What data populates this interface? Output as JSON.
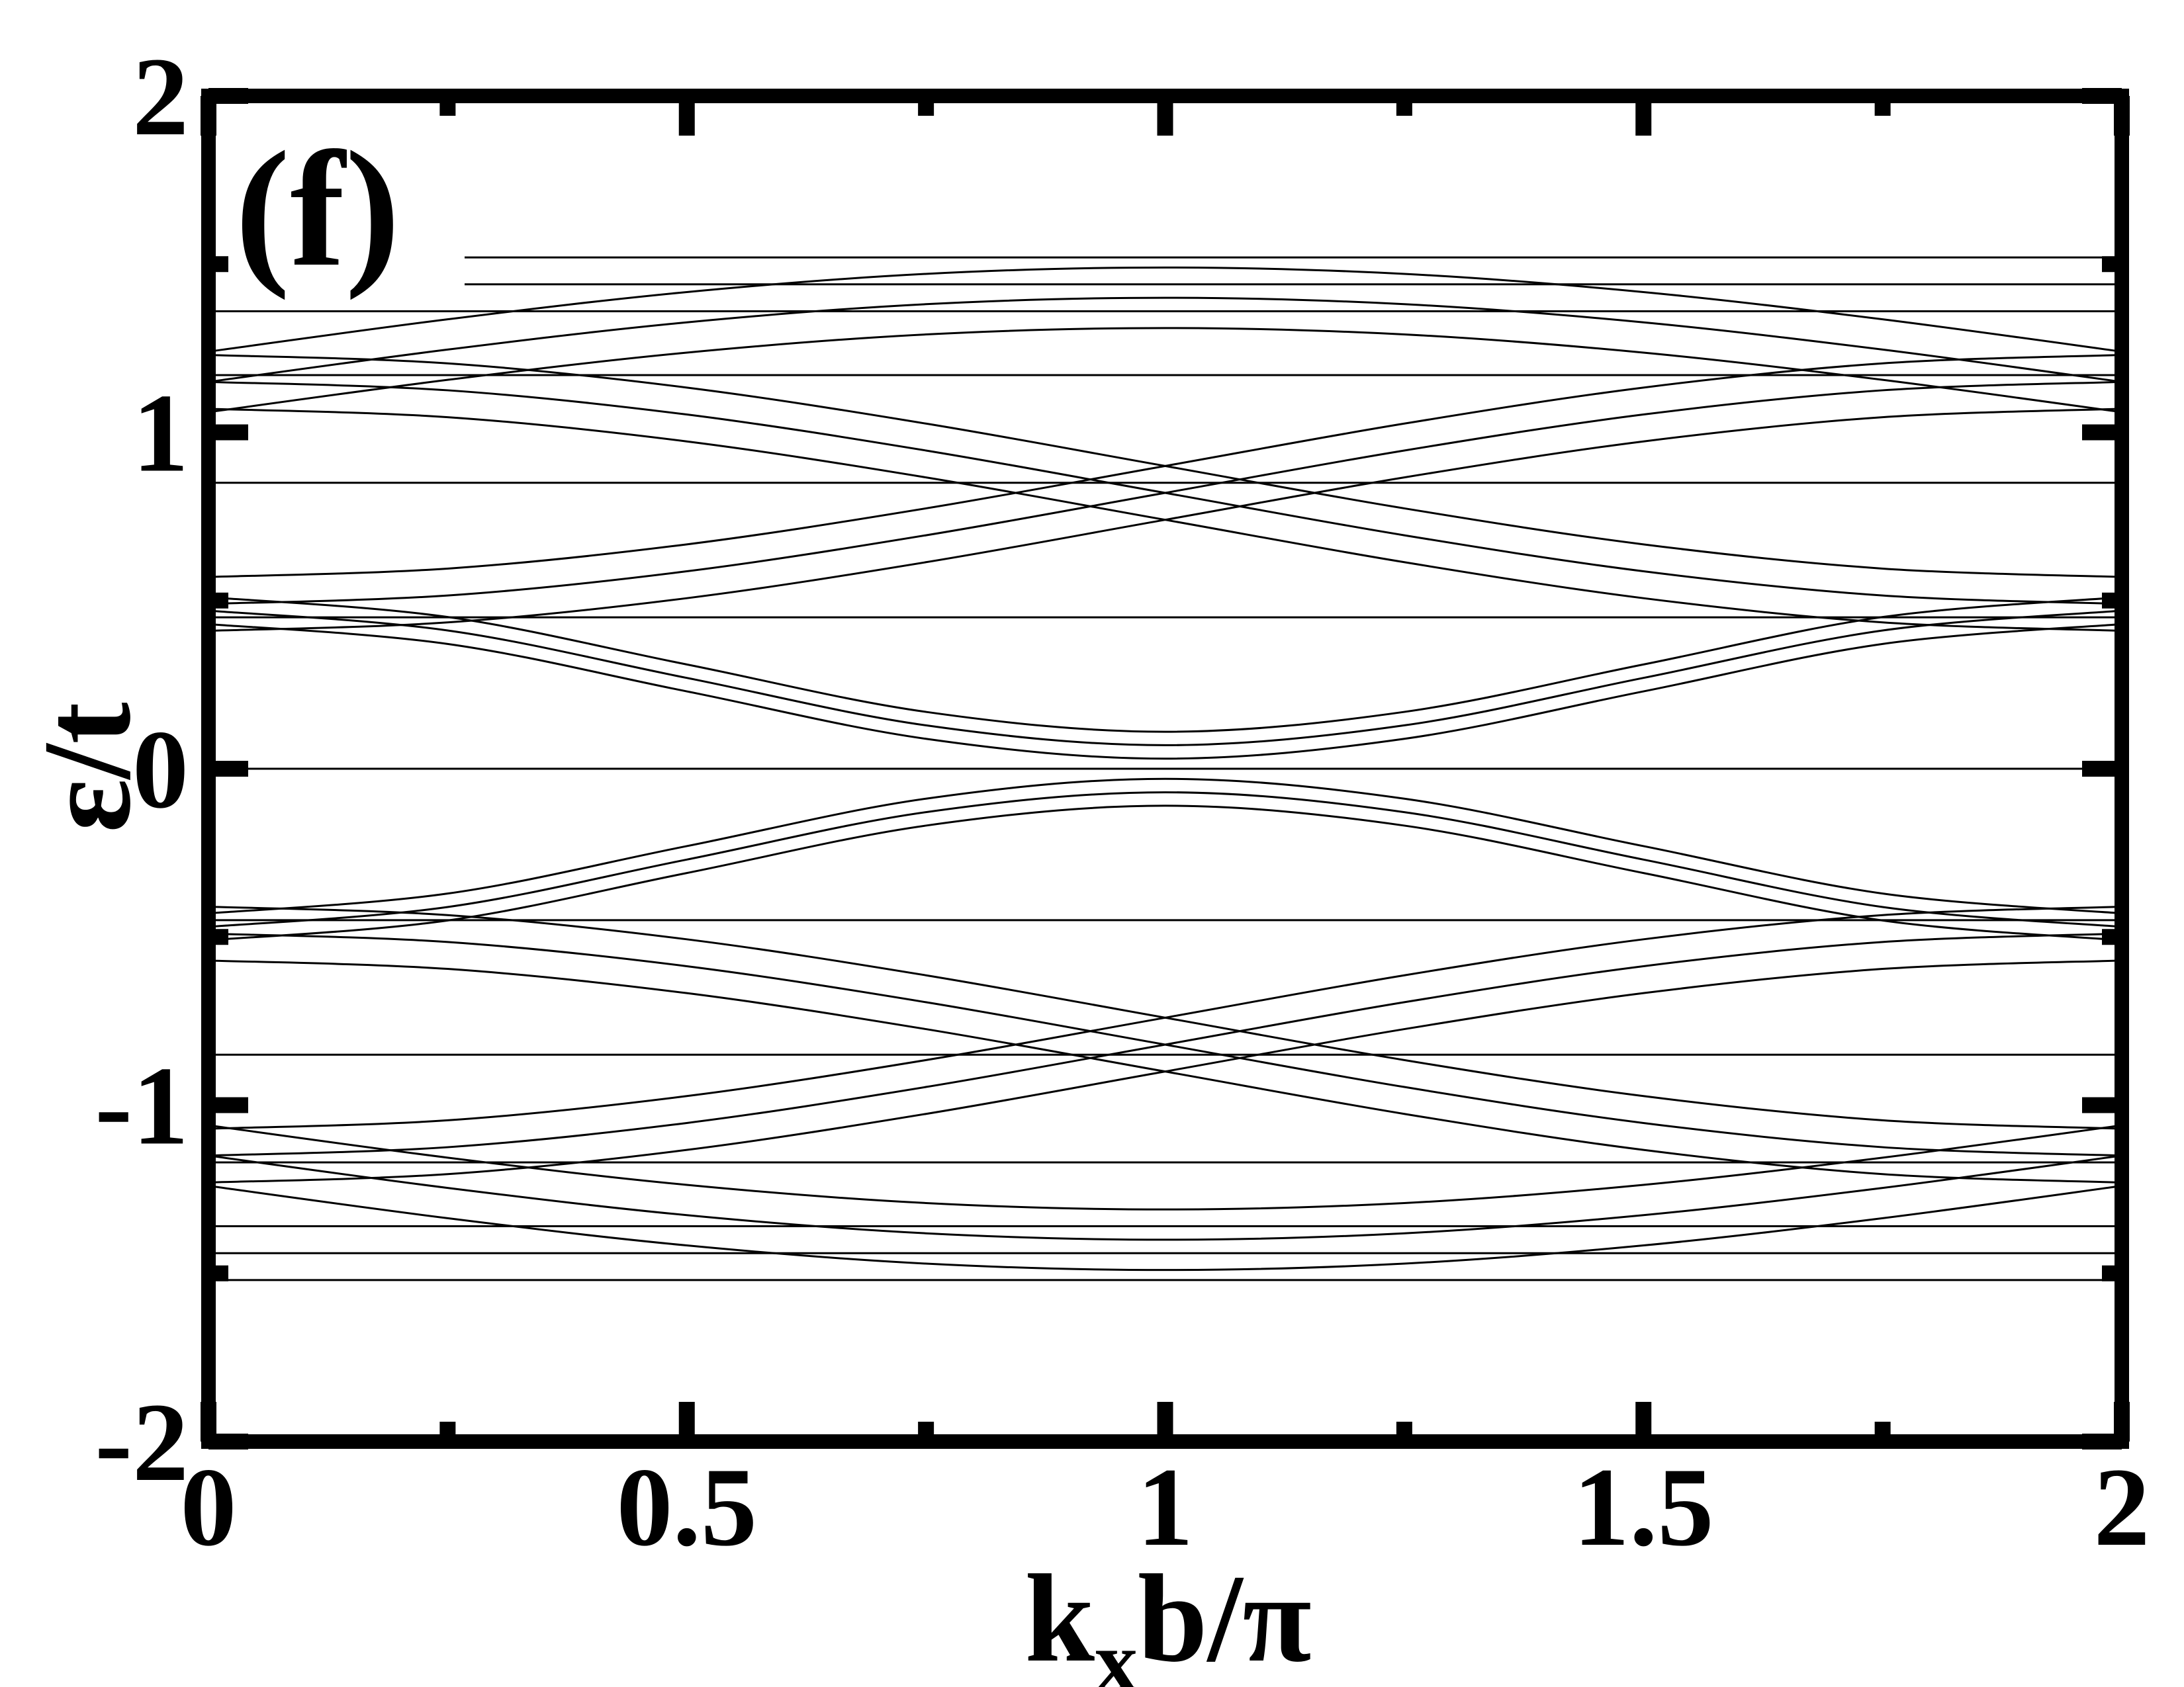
{
  "chart_data": {
    "type": "line",
    "annotation": "(f)",
    "xlabel": [
      "k",
      "x",
      "b/π"
    ],
    "ylabel": "ε/t",
    "color": "#000000",
    "xlim": [
      0,
      2
    ],
    "xticks": [
      0,
      0.5,
      1,
      1.5,
      2
    ],
    "xminorticks": [
      0.25,
      0.75,
      1.25,
      1.75
    ],
    "ylim": [
      -2,
      2
    ],
    "yticks": [
      -2,
      -1,
      0,
      1,
      2
    ],
    "yminorticks": [
      -1.5,
      -0.5,
      0.5,
      1.5
    ],
    "x": [
      0,
      0.25,
      0.5,
      0.75,
      1,
      1.25,
      1.5,
      1.75,
      2
    ],
    "series": [
      {
        "values": [
          1.07,
          1.045,
          0.973,
          0.866,
          0.74,
          0.614,
          0.507,
          0.435,
          0.41
        ]
      },
      {
        "values": [
          1.15,
          1.125,
          1.053,
          0.946,
          0.82,
          0.694,
          0.587,
          0.515,
          0.49
        ]
      },
      {
        "values": [
          1.23,
          1.205,
          1.133,
          1.026,
          0.9,
          0.774,
          0.667,
          0.595,
          0.57
        ]
      },
      {
        "values": [
          0.41,
          0.435,
          0.507,
          0.614,
          0.74,
          0.866,
          0.973,
          1.045,
          1.07
        ]
      },
      {
        "values": [
          0.49,
          0.515,
          0.587,
          0.694,
          0.82,
          0.946,
          1.053,
          1.125,
          1.15
        ]
      },
      {
        "values": [
          0.57,
          0.595,
          0.667,
          0.774,
          0.9,
          1.026,
          1.133,
          1.205,
          1.23
        ]
      },
      {
        "values": [
          1.06,
          1.156,
          1.237,
          1.291,
          1.31,
          1.291,
          1.237,
          1.156,
          1.06
        ]
      },
      {
        "values": [
          1.15,
          1.246,
          1.327,
          1.381,
          1.4,
          1.381,
          1.327,
          1.246,
          1.15
        ]
      },
      {
        "values": [
          1.24,
          1.336,
          1.417,
          1.471,
          1.49,
          1.471,
          1.417,
          1.336,
          1.24
        ]
      },
      {
        "values": [
          0.43,
          0.371,
          0.23,
          0.089,
          0.03,
          0.089,
          0.23,
          0.371,
          0.43
        ]
      },
      {
        "values": [
          0.47,
          0.411,
          0.27,
          0.129,
          0.07,
          0.129,
          0.27,
          0.411,
          0.47
        ]
      },
      {
        "values": [
          0.51,
          0.451,
          0.31,
          0.169,
          0.11,
          0.169,
          0.31,
          0.451,
          0.51
        ]
      },
      {
        "values": [
          1.52,
          1.52,
          1.52,
          1.52,
          1.52,
          1.52,
          1.52,
          1.52,
          1.52
        ]
      },
      {
        "values": [
          1.44,
          1.44,
          1.44,
          1.44,
          1.44,
          1.44,
          1.44,
          1.44,
          1.44
        ]
      },
      {
        "values": [
          1.36,
          1.36,
          1.36,
          1.36,
          1.36,
          1.36,
          1.36,
          1.36,
          1.36
        ]
      },
      {
        "values": [
          1.17,
          1.17,
          1.17,
          1.17,
          1.17,
          1.17,
          1.17,
          1.17,
          1.17
        ]
      },
      {
        "values": [
          0.85,
          0.85,
          0.85,
          0.85,
          0.85,
          0.85,
          0.85,
          0.85,
          0.85
        ]
      },
      {
        "values": [
          0.45,
          0.45,
          0.45,
          0.45,
          0.45,
          0.45,
          0.45,
          0.45,
          0.45
        ]
      },
      {
        "values": [
          0,
          0,
          0,
          0,
          0,
          0,
          0,
          0,
          0
        ]
      },
      {
        "values": [
          -1.07,
          -1.045,
          -0.973,
          -0.866,
          -0.74,
          -0.614,
          -0.507,
          -0.435,
          -0.41
        ]
      },
      {
        "values": [
          -1.15,
          -1.125,
          -1.053,
          -0.946,
          -0.82,
          -0.694,
          -0.587,
          -0.515,
          -0.49
        ]
      },
      {
        "values": [
          -1.23,
          -1.205,
          -1.133,
          -1.026,
          -0.9,
          -0.774,
          -0.667,
          -0.595,
          -0.57
        ]
      },
      {
        "values": [
          -0.41,
          -0.435,
          -0.507,
          -0.614,
          -0.74,
          -0.866,
          -0.973,
          -1.045,
          -1.07
        ]
      },
      {
        "values": [
          -0.49,
          -0.515,
          -0.587,
          -0.694,
          -0.82,
          -0.946,
          -1.053,
          -1.125,
          -1.15
        ]
      },
      {
        "values": [
          -0.57,
          -0.595,
          -0.667,
          -0.774,
          -0.9,
          -1.026,
          -1.133,
          -1.205,
          -1.23
        ]
      },
      {
        "values": [
          -1.06,
          -1.156,
          -1.237,
          -1.291,
          -1.31,
          -1.291,
          -1.237,
          -1.156,
          -1.06
        ]
      },
      {
        "values": [
          -1.15,
          -1.246,
          -1.327,
          -1.381,
          -1.4,
          -1.381,
          -1.327,
          -1.246,
          -1.15
        ]
      },
      {
        "values": [
          -1.24,
          -1.336,
          -1.417,
          -1.471,
          -1.49,
          -1.471,
          -1.417,
          -1.336,
          -1.24
        ]
      },
      {
        "values": [
          -0.43,
          -0.371,
          -0.23,
          -0.089,
          -0.03,
          -0.089,
          -0.23,
          -0.371,
          -0.43
        ]
      },
      {
        "values": [
          -0.47,
          -0.411,
          -0.27,
          -0.129,
          -0.07,
          -0.129,
          -0.27,
          -0.411,
          -0.47
        ]
      },
      {
        "values": [
          -0.51,
          -0.451,
          -0.31,
          -0.169,
          -0.11,
          -0.169,
          -0.31,
          -0.451,
          -0.51
        ]
      },
      {
        "values": [
          -1.52,
          -1.52,
          -1.52,
          -1.52,
          -1.52,
          -1.52,
          -1.52,
          -1.52,
          -1.52
        ]
      },
      {
        "values": [
          -1.44,
          -1.44,
          -1.44,
          -1.44,
          -1.44,
          -1.44,
          -1.44,
          -1.44,
          -1.44
        ]
      },
      {
        "values": [
          -1.36,
          -1.36,
          -1.36,
          -1.36,
          -1.36,
          -1.36,
          -1.36,
          -1.36,
          -1.36
        ]
      },
      {
        "values": [
          -1.17,
          -1.17,
          -1.17,
          -1.17,
          -1.17,
          -1.17,
          -1.17,
          -1.17,
          -1.17
        ]
      },
      {
        "values": [
          -0.85,
          -0.85,
          -0.85,
          -0.85,
          -0.85,
          -0.85,
          -0.85,
          -0.85,
          -0.85
        ]
      },
      {
        "values": [
          -0.45,
          -0.45,
          -0.45,
          -0.45,
          -0.45,
          -0.45,
          -0.45,
          -0.45,
          -0.45
        ]
      }
    ]
  }
}
